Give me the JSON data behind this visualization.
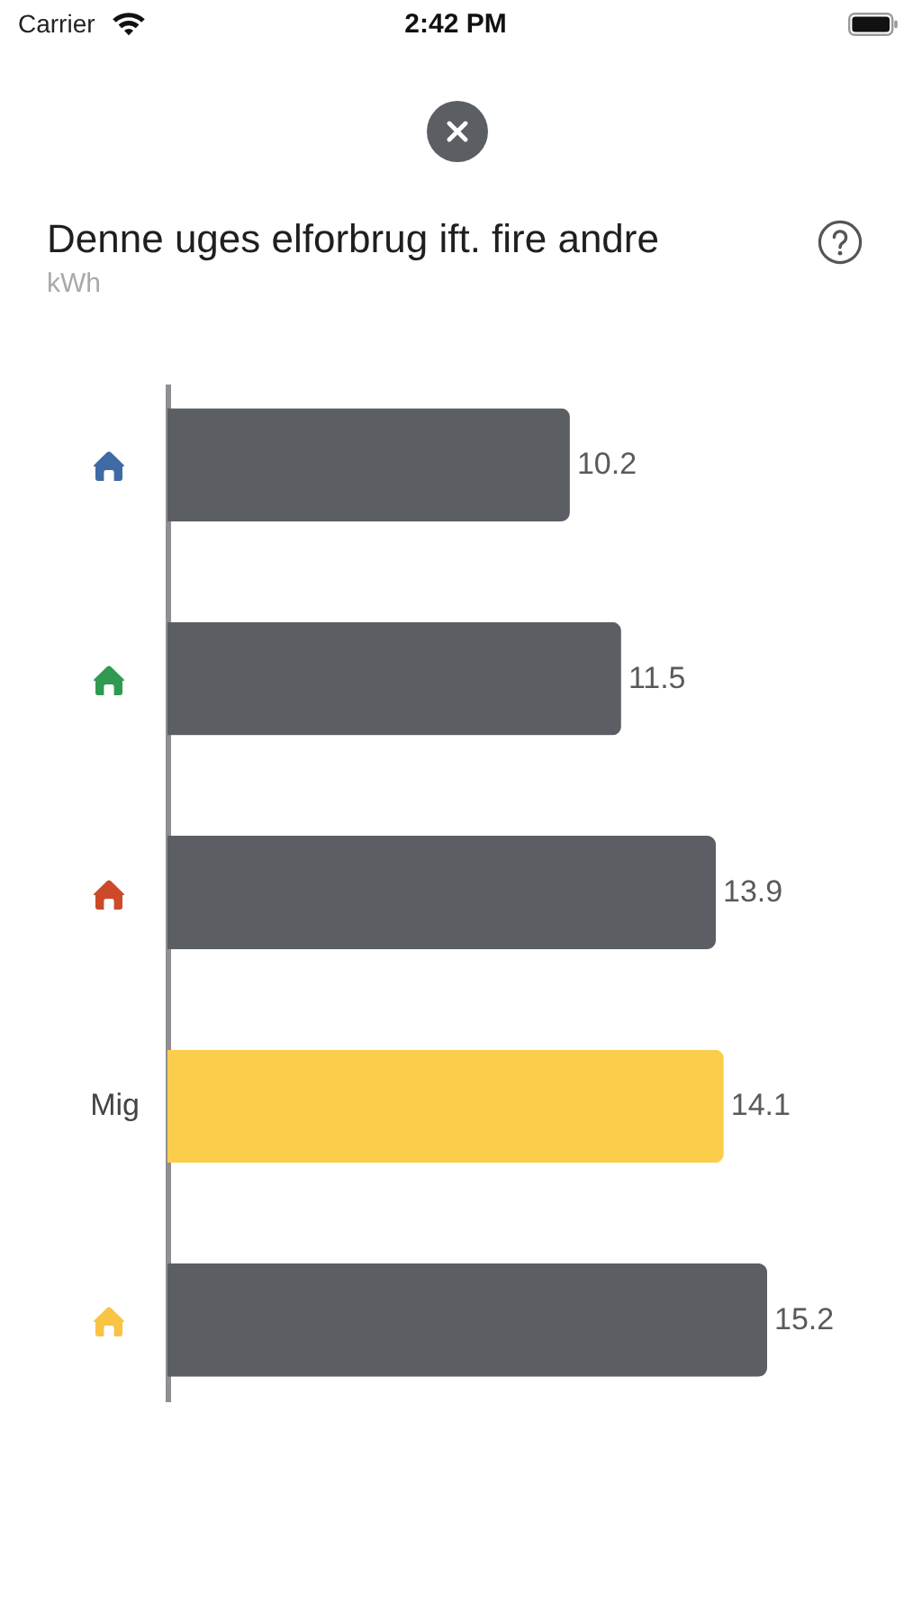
{
  "chart_data": {
    "type": "bar",
    "orientation": "horizontal",
    "title": "Denne uges elforbrug ift. fire andre",
    "subtitle": "kWh",
    "categories": [
      null,
      null,
      null,
      "Mig",
      null
    ],
    "values": [
      10.2,
      11.5,
      13.9,
      14.1,
      15.2
    ],
    "colors": [
      "#5b5e63",
      "#5b5e63",
      "#5b5e63",
      "#fccd4b",
      "#5b5e63"
    ],
    "data_labels": true,
    "tick_labels": "y",
    "annotations": [
      "Carrier",
      "2:42 PM"
    ]
  }
}
